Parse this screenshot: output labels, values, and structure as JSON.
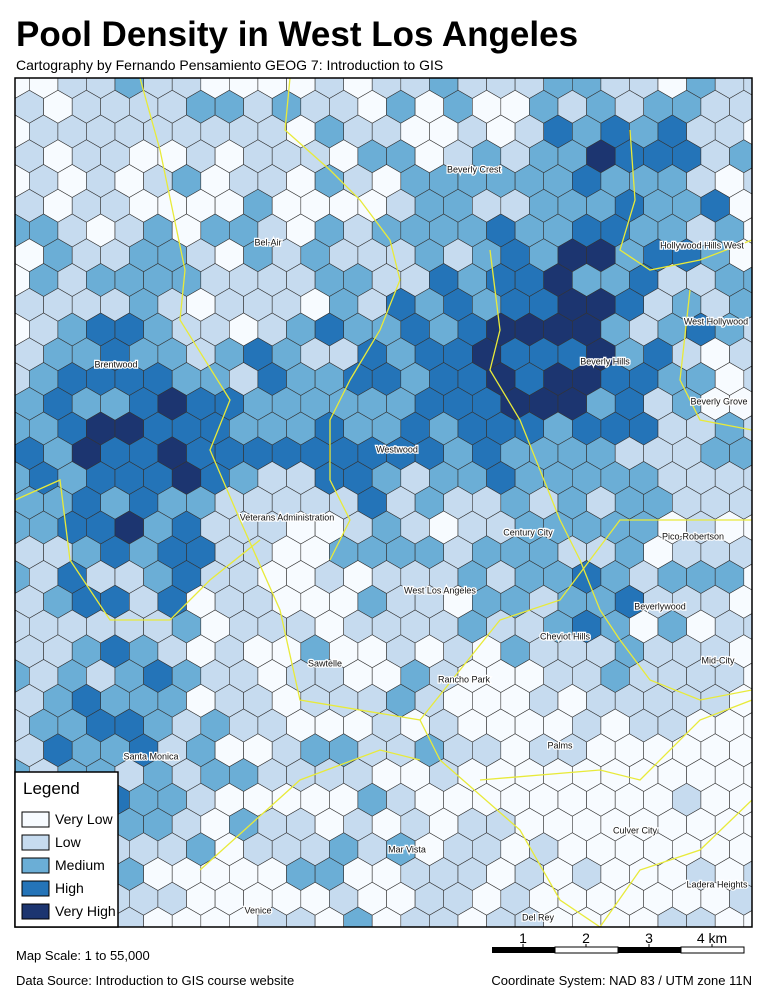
{
  "header": {
    "title": "Pool Density in West Los Angeles",
    "subtitle": "Cartography by Fernando Pensamiento GEOG 7: Introduction to GIS"
  },
  "places": [
    "Beverly Crest",
    "Bel-Air",
    "Hollywood Hills West",
    "West Hollywood",
    "Brentwood",
    "Beverly Hills",
    "Beverly Grove",
    "Westwood",
    "Veterans Administration",
    "Century City",
    "Pico-Robertson",
    "West Los Angeles",
    "Beverlywood",
    "Cheviot Hills",
    "Mid-City",
    "Sawtelle",
    "Rancho Park",
    "Santa Monica",
    "Palms",
    "Culver City",
    "Mar Vista",
    "Ladera Heights",
    "Venice",
    "Del Rey"
  ],
  "legend": {
    "title": "Legend",
    "items": [
      {
        "label": "Very Low",
        "color": "#f7fbff"
      },
      {
        "label": "Low",
        "color": "#c6dbef"
      },
      {
        "label": "Medium",
        "color": "#6baed6"
      },
      {
        "label": "High",
        "color": "#2474b8"
      },
      {
        "label": "Very High",
        "color": "#1c3570"
      }
    ]
  },
  "scale_bar": {
    "ticks": [
      1,
      2,
      3,
      {
        "value": 4,
        "label": "4 km"
      }
    ]
  },
  "footer": {
    "map_scale": "Map Scale: 1 to 55,000",
    "data_source": "Data Source: Introduction to GIS course website",
    "coordinate_system": "Coordinate System: NAD 83 / UTM zone 11N"
  }
}
